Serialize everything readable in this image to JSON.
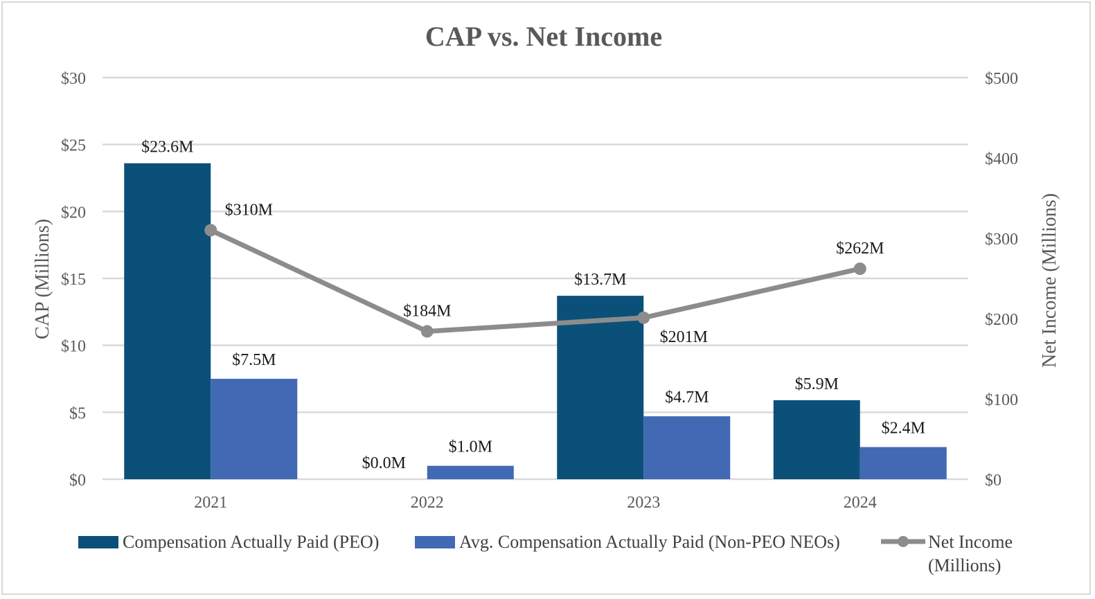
{
  "chart_data": {
    "type": "bar",
    "title": "CAP vs. Net Income",
    "categories": [
      "2021",
      "2022",
      "2023",
      "2024"
    ],
    "ylabel": "CAP (Millions)",
    "y2label": "Net Income (Millions)",
    "ylim": [
      0,
      30
    ],
    "y2lim": [
      0,
      500
    ],
    "yticks": [
      {
        "value": 0,
        "label": "$0"
      },
      {
        "value": 5,
        "label": "$5"
      },
      {
        "value": 10,
        "label": "$10"
      },
      {
        "value": 15,
        "label": "$15"
      },
      {
        "value": 20,
        "label": "$20"
      },
      {
        "value": 25,
        "label": "$25"
      },
      {
        "value": 30,
        "label": "$30"
      }
    ],
    "y2ticks": [
      {
        "value": 0,
        "label": "$0"
      },
      {
        "value": 100,
        "label": "$100"
      },
      {
        "value": 200,
        "label": "$200"
      },
      {
        "value": 300,
        "label": "$300"
      },
      {
        "value": 400,
        "label": "$400"
      },
      {
        "value": 500,
        "label": "$500"
      }
    ],
    "grid": true,
    "legend_position": "bottom",
    "series": [
      {
        "name": "Compensation Actually Paid (PEO)",
        "type": "bar",
        "axis": "left",
        "color": "#0b5078",
        "values": [
          23.6,
          0.0,
          13.7,
          5.9
        ],
        "labels": [
          "$23.6M",
          "$0.0M",
          "$13.7M",
          "$5.9M"
        ]
      },
      {
        "name": "Avg. Compensation Actually Paid (Non-PEO NEOs)",
        "type": "bar",
        "axis": "left",
        "color": "#4169b4",
        "values": [
          7.5,
          1.0,
          4.7,
          2.4
        ],
        "labels": [
          "$7.5M",
          "$1.0M",
          "$4.7M",
          "$2.4M"
        ]
      },
      {
        "name": "Net Income (Millions)",
        "legend_lines": [
          "Net Income",
          "(Millions)"
        ],
        "type": "line",
        "axis": "right",
        "color": "#8c8c8c",
        "values": [
          310,
          184,
          201,
          262
        ],
        "labels": [
          "$310M",
          "$184M",
          "$201M",
          "$262M"
        ]
      }
    ]
  }
}
